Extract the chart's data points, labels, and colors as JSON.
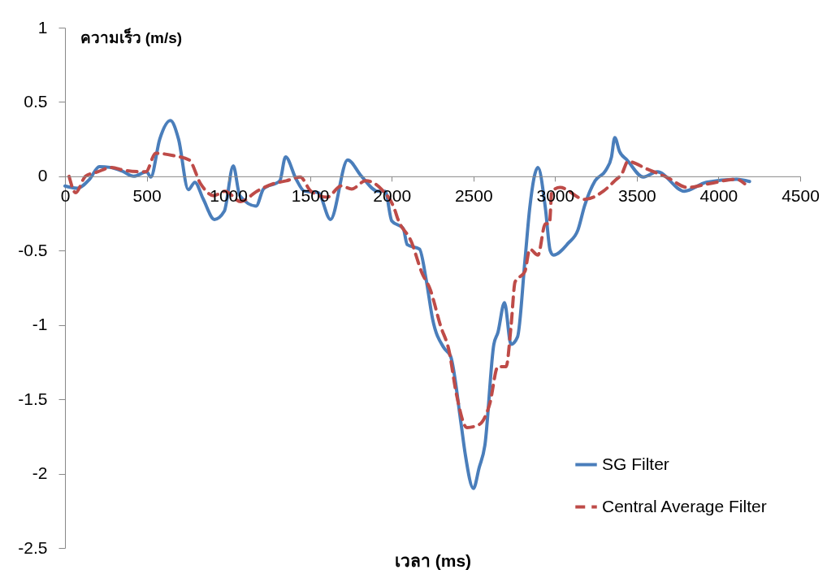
{
  "chart_data": {
    "type": "line",
    "xlabel": "เวลา (ms)",
    "ylabel": "ความเร็ว (m/s)",
    "xlim": [
      0,
      4500
    ],
    "xticks": [
      0,
      500,
      1000,
      1500,
      2000,
      2500,
      3000,
      3500,
      4000,
      4500
    ],
    "ylim": [
      -2.5,
      1
    ],
    "yticks": [
      -2.5,
      -2,
      -1.5,
      -1,
      -0.5,
      0,
      0.5,
      1
    ],
    "grid": false,
    "legend": "bottom right",
    "marker": "none",
    "series": [
      {
        "name": "SG Filter",
        "color": "#4a7ebb",
        "line_style": "solid",
        "x": [
          0,
          75,
          150,
          210,
          275,
          350,
          420,
          500,
          525,
          580,
          645,
          695,
          755,
          795,
          845,
          915,
          975,
          1030,
          1070,
          1170,
          1215,
          1315,
          1350,
          1415,
          1465,
          1550,
          1625,
          1730,
          1815,
          1915,
          1960,
          2000,
          2070,
          2095,
          2170,
          2210,
          2250,
          2320,
          2360,
          2425,
          2450,
          2500,
          2535,
          2570,
          2625,
          2650,
          2690,
          2730,
          2770,
          2815,
          2845,
          2895,
          2940,
          2970,
          2990,
          3080,
          3140,
          3180,
          3245,
          3310,
          3345,
          3365,
          3395,
          3440,
          3540,
          3625,
          3790,
          3925,
          4110,
          4190
        ],
        "values": [
          -0.065,
          -0.08,
          -0.02,
          0.065,
          0.06,
          0.035,
          0.0,
          0.03,
          -0.005,
          0.25,
          0.375,
          0.25,
          -0.09,
          -0.04,
          -0.15,
          -0.29,
          -0.235,
          0.07,
          -0.13,
          -0.2,
          -0.085,
          -0.03,
          0.13,
          -0.02,
          -0.1,
          -0.11,
          -0.29,
          0.11,
          0.0,
          -0.1,
          -0.1,
          -0.3,
          -0.35,
          -0.46,
          -0.49,
          -0.69,
          -0.96,
          -1.155,
          -1.21,
          -1.67,
          -1.87,
          -2.1,
          -1.96,
          -1.81,
          -1.13,
          -1.05,
          -0.85,
          -1.13,
          -1.08,
          -0.57,
          -0.21,
          0.06,
          -0.21,
          -0.5,
          -0.53,
          -0.45,
          -0.36,
          -0.2,
          -0.03,
          0.04,
          0.13,
          0.26,
          0.165,
          0.11,
          -0.005,
          0.03,
          -0.1,
          -0.04,
          -0.02,
          -0.035
        ]
      },
      {
        "name": "Central Average Filter",
        "color": "#be4b48",
        "line_style": "dashed",
        "x": [
          25,
          65,
          125,
          200,
          285,
          365,
          495,
          555,
          660,
          760,
          830,
          910,
          980,
          1075,
          1175,
          1275,
          1355,
          1440,
          1505,
          1605,
          1690,
          1755,
          1840,
          1935,
          2020,
          2035,
          2120,
          2185,
          2235,
          2300,
          2350,
          2395,
          2460,
          2535,
          2600,
          2650,
          2700,
          2730,
          2755,
          2815,
          2845,
          2895,
          2940,
          2965,
          2980,
          3030,
          3180,
          3295,
          3365,
          3410,
          3445,
          3560,
          3690,
          3810,
          3940,
          4110,
          4160
        ],
        "values": [
          0.0,
          -0.11,
          0.0,
          0.03,
          0.06,
          0.04,
          0.03,
          0.155,
          0.14,
          0.11,
          -0.05,
          -0.13,
          -0.1,
          -0.17,
          -0.1,
          -0.05,
          -0.03,
          -0.005,
          -0.1,
          -0.14,
          -0.065,
          -0.085,
          -0.03,
          -0.085,
          -0.23,
          -0.28,
          -0.44,
          -0.65,
          -0.76,
          -1.01,
          -1.17,
          -1.46,
          -1.69,
          -1.67,
          -1.53,
          -1.28,
          -1.28,
          -1.01,
          -0.71,
          -0.64,
          -0.49,
          -0.53,
          -0.32,
          -0.32,
          -0.1,
          -0.075,
          -0.155,
          -0.1,
          -0.03,
          0.02,
          0.1,
          0.05,
          -0.01,
          -0.075,
          -0.05,
          -0.02,
          -0.05
        ]
      }
    ]
  }
}
